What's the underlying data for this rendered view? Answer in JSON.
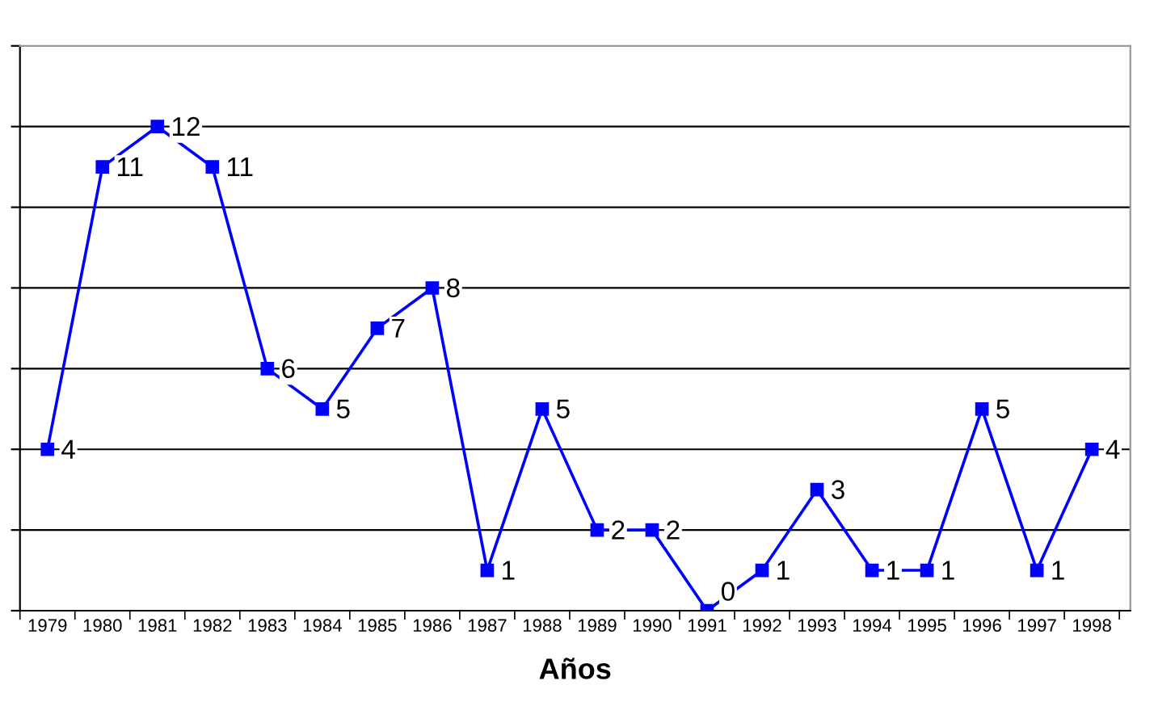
{
  "chart_data": {
    "type": "line",
    "xlabel": "Años",
    "categories": [
      "1979",
      "1980",
      "1981",
      "1982",
      "1983",
      "1984",
      "1985",
      "1986",
      "1987",
      "1988",
      "1989",
      "1990",
      "1991",
      "1992",
      "1993",
      "1994",
      "1995",
      "1996",
      "1997",
      "1998"
    ],
    "series": [
      {
        "color": "#0000ff",
        "values": [
          4,
          11,
          12,
          11,
          6,
          5,
          7,
          8,
          1,
          5,
          2,
          2,
          0,
          1,
          3,
          1,
          1,
          5,
          1,
          4
        ]
      }
    ],
    "ylim": [
      0,
      14
    ],
    "yticks": [
      {
        "value": 0,
        "label": null
      },
      {
        "value": 2,
        "label": null
      },
      {
        "value": 4,
        "label": null
      },
      {
        "value": 6,
        "label": null
      },
      {
        "value": 8,
        "label": null
      },
      {
        "value": 10,
        "label": null
      },
      {
        "value": 12,
        "label": null
      },
      {
        "value": 14,
        "label": null
      }
    ],
    "tick_labels": "x",
    "grid": "y",
    "marker": "square",
    "line_style": "solid",
    "data_labels": true,
    "legend": false
  }
}
